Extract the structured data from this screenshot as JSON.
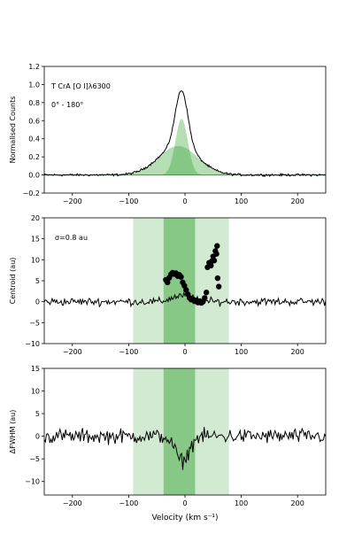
{
  "chart_data": [
    {
      "type": "line",
      "panel": "profile",
      "ylabel": "Normalised Counts",
      "xlim": [
        -250,
        250
      ],
      "ylim": [
        -0.2,
        1.2
      ],
      "xticks": [
        "−200",
        "−100",
        "0",
        "100",
        "200"
      ],
      "xtick_values": [
        -200,
        -100,
        0,
        100,
        200
      ],
      "yticks": [
        "−0.2",
        "0.0",
        "0.2",
        "0.4",
        "0.6",
        "0.8",
        "1.0",
        "1.2"
      ],
      "ytick_values": [
        -0.2,
        0,
        0.2,
        0.4,
        0.6,
        0.8,
        1.0,
        1.2
      ],
      "annotations": [
        "T CrA [O I]λ6300",
        "0° - 180°"
      ],
      "components": [
        {
          "name": "broad",
          "center": -12,
          "amplitude": 0.32,
          "sigma": 35,
          "color": "#2ca02c",
          "alpha": 0.35
        },
        {
          "name": "narrow",
          "center": -6,
          "amplitude": 0.62,
          "sigma": 11,
          "color": "#2ca02c",
          "alpha": 0.35
        }
      ],
      "spectrum": {
        "center": -7,
        "peak": 0.93,
        "color": "#000000"
      }
    },
    {
      "type": "scatter",
      "panel": "centroid",
      "ylabel": "Centroid (au)",
      "xlim": [
        -250,
        250
      ],
      "ylim": [
        -10,
        20
      ],
      "xticks": [
        "−200",
        "−100",
        "0",
        "100",
        "200"
      ],
      "xtick_values": [
        -200,
        -100,
        0,
        100,
        200
      ],
      "yticks": [
        "−10",
        "−5",
        "0",
        "5",
        "10",
        "15",
        "20"
      ],
      "ytick_values": [
        -10,
        -5,
        0,
        5,
        10,
        15,
        20
      ],
      "annotation": "σ=0.8 au",
      "bands": [
        {
          "range": [
            -92,
            78
          ],
          "color": "#2ca02c",
          "alpha": 0.22
        },
        {
          "range": [
            -38,
            18
          ],
          "color": "#2ca02c",
          "alpha": 0.45
        }
      ],
      "points": [
        [
          -34,
          5.2
        ],
        [
          -31,
          4.6
        ],
        [
          -28,
          5.7
        ],
        [
          -25,
          6.5
        ],
        [
          -22,
          6.9
        ],
        [
          -19,
          6.6
        ],
        [
          -16,
          6.8
        ],
        [
          -13,
          6.1
        ],
        [
          -10,
          6.4
        ],
        [
          -7,
          5.9
        ],
        [
          -4,
          4.6
        ],
        [
          -1,
          3.8
        ],
        [
          2,
          2.8
        ],
        [
          5,
          1.8
        ],
        [
          8,
          0.9
        ],
        [
          11,
          0.5
        ],
        [
          14,
          0.6
        ],
        [
          17,
          0.1
        ],
        [
          20,
          0.3
        ],
        [
          23,
          -0.2
        ],
        [
          26,
          0.1
        ],
        [
          29,
          -0.3
        ],
        [
          32,
          0.0
        ],
        [
          35,
          0.9
        ],
        [
          38,
          2.2
        ],
        [
          40,
          8.2
        ],
        [
          43,
          9.3
        ],
        [
          46,
          8.6
        ],
        [
          48,
          9.7
        ],
        [
          50,
          10.8
        ],
        [
          52,
          9.8
        ],
        [
          54,
          12.1
        ],
        [
          56,
          11.4
        ],
        [
          57,
          13.3
        ],
        [
          58,
          5.6
        ],
        [
          60,
          3.6
        ]
      ]
    },
    {
      "type": "line",
      "panel": "fwhm",
      "ylabel": "ΔFWHM (au)",
      "xlabel": "Velocity (km s⁻¹)",
      "xlim": [
        -250,
        250
      ],
      "ylim": [
        -13,
        15
      ],
      "xticks": [
        "−200",
        "−100",
        "0",
        "100",
        "200"
      ],
      "xtick_values": [
        -200,
        -100,
        0,
        100,
        200
      ],
      "yticks": [
        "−10",
        "−5",
        "0",
        "5",
        "10",
        "15"
      ],
      "ytick_values": [
        -10,
        -5,
        0,
        5,
        10,
        15
      ],
      "bands": [
        {
          "range": [
            -92,
            78
          ],
          "color": "#2ca02c",
          "alpha": 0.22
        },
        {
          "range": [
            -38,
            18
          ],
          "color": "#2ca02c",
          "alpha": 0.45
        }
      ],
      "dip": {
        "center": -5,
        "depth": -5.5,
        "width": 12
      }
    }
  ]
}
